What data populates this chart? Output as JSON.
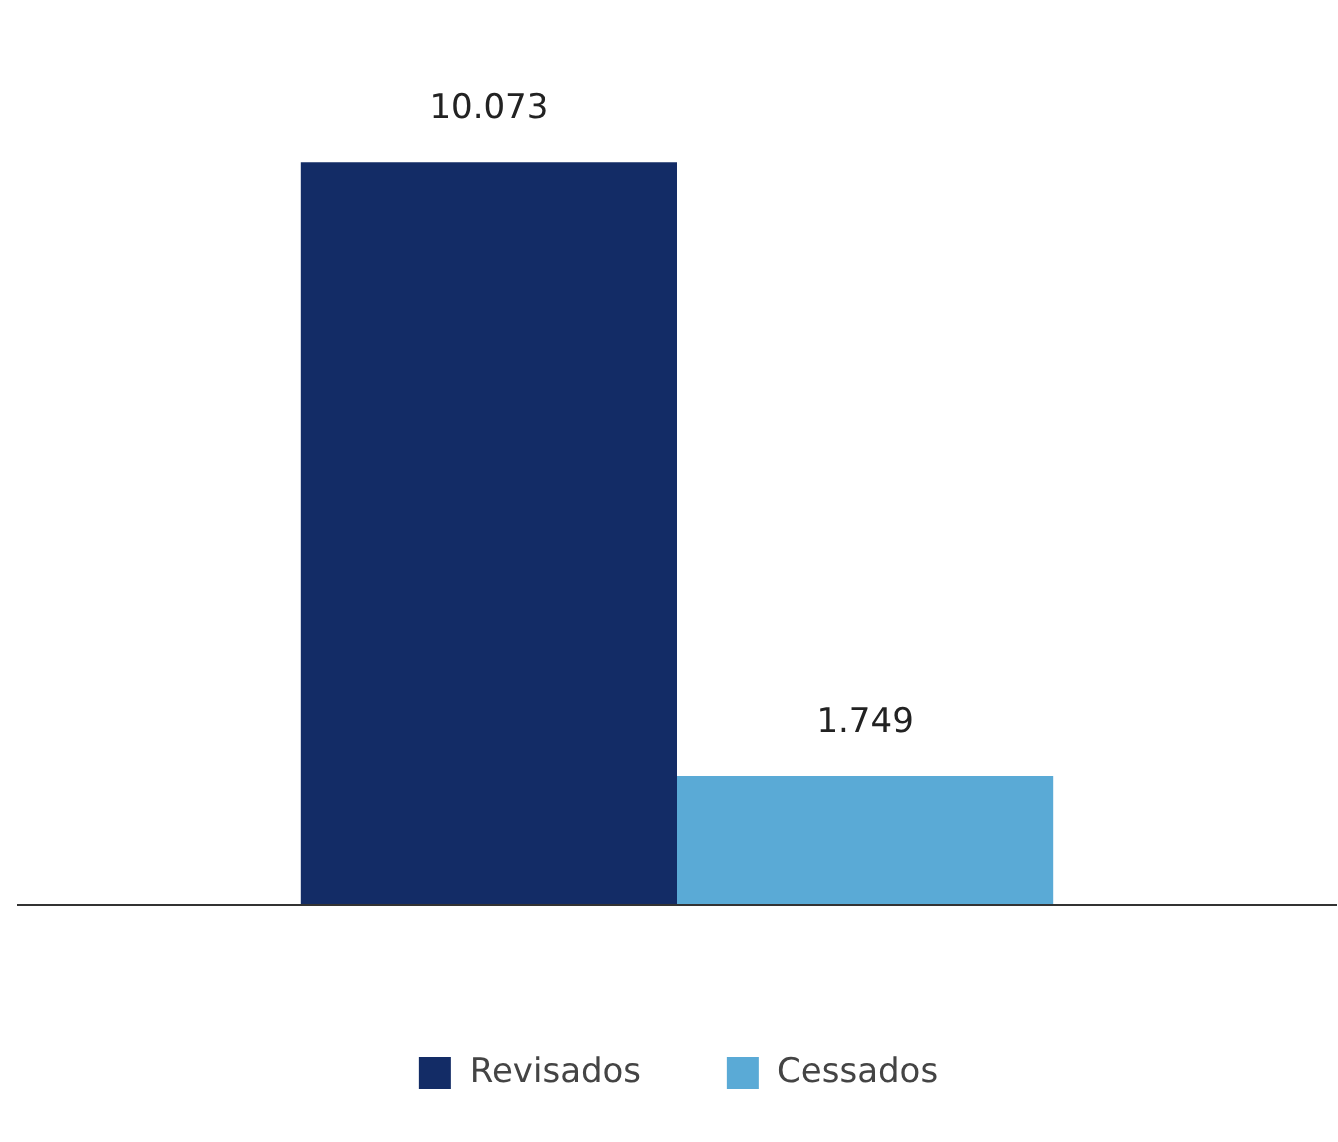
{
  "chart_data": {
    "type": "bar",
    "categories": [
      null
    ],
    "series": [
      {
        "name": "Revisados",
        "color": "#132c66",
        "values": [
          10073
        ],
        "value_labels": [
          "10.073"
        ]
      },
      {
        "name": "Cessados",
        "color": "#5aaad6",
        "values": [
          1749
        ],
        "value_labels": [
          "1.749"
        ]
      }
    ],
    "legend": "bottom",
    "grid": false,
    "tick_labels": false
  }
}
